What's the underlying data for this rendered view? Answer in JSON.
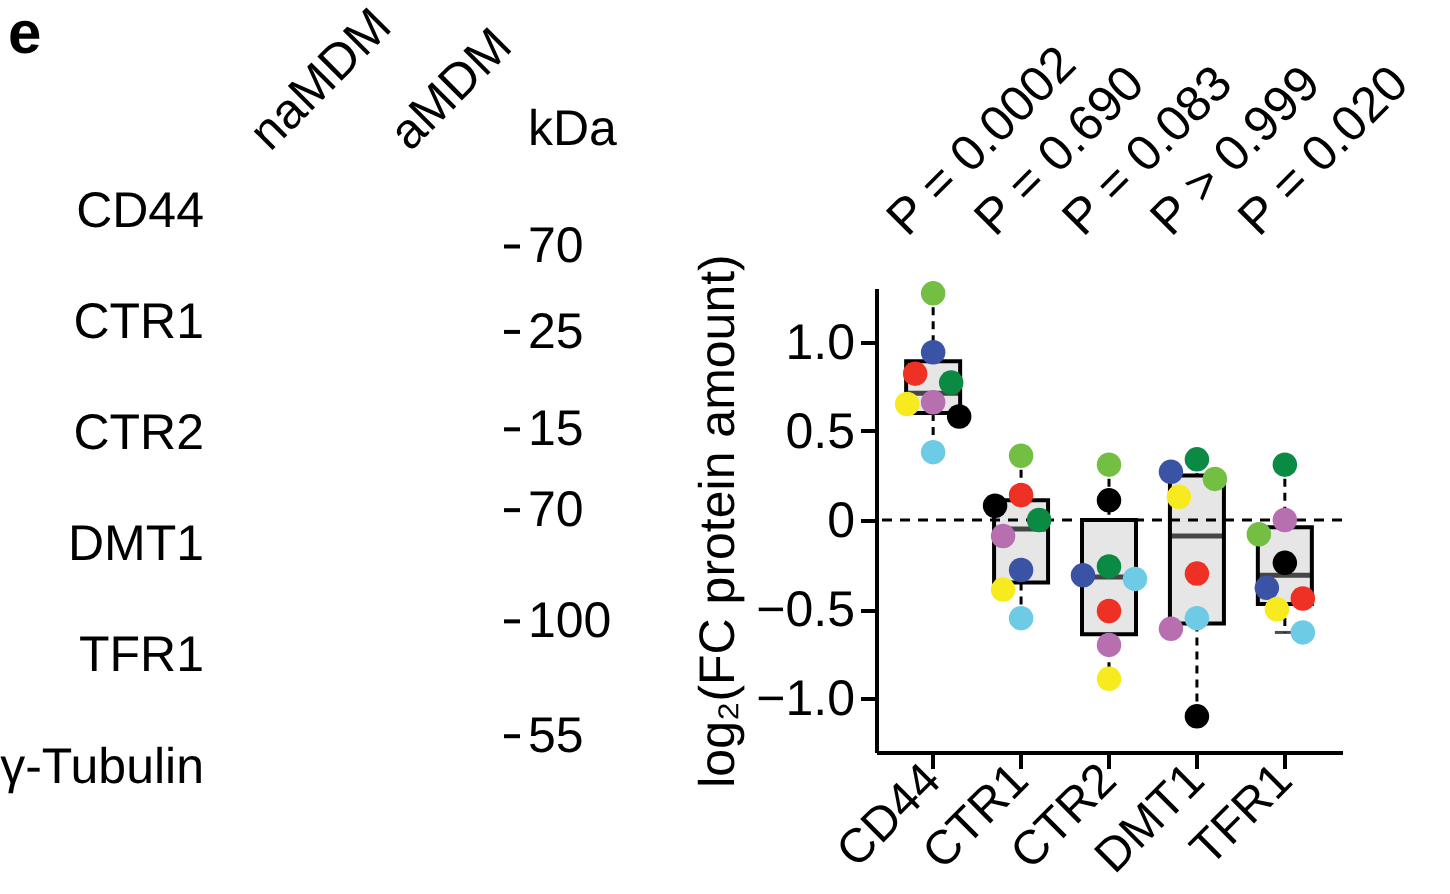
{
  "chart_data": [
    {
      "type": "other",
      "annotations": [
        "e"
      ],
      "categories": [
        "naMDM",
        "aMDM"
      ],
      "y_categories": [
        "CD44",
        "CTR1",
        "CTR2",
        "DMT1",
        "TFR1",
        "γ-Tubulin"
      ],
      "y2label": "kDa",
      "y2_categories": [
        "70",
        "25",
        "15",
        "70",
        "100",
        "55"
      ]
    },
    {
      "type": "box",
      "ylabel": "log₂(FC protein amount)",
      "categories": [
        "CD44",
        "CTR1",
        "CTR2",
        "DMT1",
        "TFR1"
      ],
      "ylim": [
        -1.3,
        1.3
      ],
      "yticks": [
        {
          "value": -1,
          "label": "−1.0"
        },
        {
          "value": -0.5,
          "label": "−0.5"
        },
        0,
        0.5,
        {
          "value": 1,
          "label": "1.0"
        }
      ],
      "boxes": [
        {
          "low": 0.38,
          "q1": 0.6,
          "median": 0.71,
          "q3": 0.89,
          "high": 1.27
        },
        {
          "low": -0.55,
          "q1": -0.35,
          "median": -0.05,
          "q3": 0.11,
          "high": 0.36
        },
        {
          "low": -0.89,
          "q1": -0.64,
          "median": -0.32,
          "q3": 0.0,
          "high": 0.31
        },
        {
          "low": -1.1,
          "q1": -0.58,
          "median": -0.09,
          "q3": 0.25,
          "high": 0.34
        },
        {
          "low": -0.63,
          "q1": -0.47,
          "median": -0.31,
          "q3": -0.04,
          "high": 0.31
        }
      ],
      "marker": "circle",
      "series": [
        {
          "type": "scatter",
          "color": "#72bf44",
          "x": [
            "CD44",
            "CTR1",
            "CTR2",
            "DMT1",
            "TFR1"
          ],
          "values": [
            1.27,
            0.36,
            0.31,
            0.23,
            -0.08
          ]
        },
        {
          "type": "scatter",
          "color": "#3a53a4",
          "x": [
            "CD44",
            "CTR1",
            "CTR2",
            "DMT1",
            "TFR1"
          ],
          "values": [
            0.94,
            -0.28,
            -0.31,
            0.27,
            -0.38
          ]
        },
        {
          "type": "scatter",
          "color": "#ee3124",
          "x": [
            "CD44",
            "CTR1",
            "CTR2",
            "DMT1",
            "TFR1"
          ],
          "values": [
            0.82,
            0.14,
            -0.51,
            -0.3,
            -0.44
          ]
        },
        {
          "type": "scatter",
          "color": "#0b8a43",
          "x": [
            "CD44",
            "CTR1",
            "CTR2",
            "DMT1",
            "TFR1"
          ],
          "values": [
            0.77,
            0.0,
            -0.26,
            0.34,
            0.31
          ]
        },
        {
          "type": "scatter",
          "color": "#b86fb0",
          "x": [
            "CD44",
            "CTR1",
            "CTR2",
            "DMT1",
            "TFR1"
          ],
          "values": [
            0.66,
            -0.09,
            -0.7,
            -0.61,
            0.0
          ]
        },
        {
          "type": "scatter",
          "color": "#f7ea1e",
          "x": [
            "CD44",
            "CTR1",
            "CTR2",
            "DMT1",
            "TFR1"
          ],
          "values": [
            0.65,
            -0.39,
            -0.89,
            0.13,
            -0.5
          ]
        },
        {
          "type": "scatter",
          "color": "#000000",
          "x": [
            "CD44",
            "CTR1",
            "CTR2",
            "DMT1",
            "TFR1"
          ],
          "values": [
            0.58,
            0.08,
            0.11,
            -1.1,
            -0.24
          ]
        },
        {
          "type": "scatter",
          "color": "#6dcbe5",
          "x": [
            "CD44",
            "CTR1",
            "CTR2",
            "DMT1",
            "TFR1"
          ],
          "values": [
            0.38,
            -0.55,
            -0.33,
            -0.55,
            -0.63
          ]
        }
      ],
      "ref_lines": [
        {
          "axis": "y",
          "value": 0,
          "line_style": "dashed"
        }
      ],
      "annotations": [
        "P = 0.0002",
        "P = 0.690",
        "P = 0.083",
        "P > 0.999",
        "P = 0.020"
      ]
    }
  ]
}
